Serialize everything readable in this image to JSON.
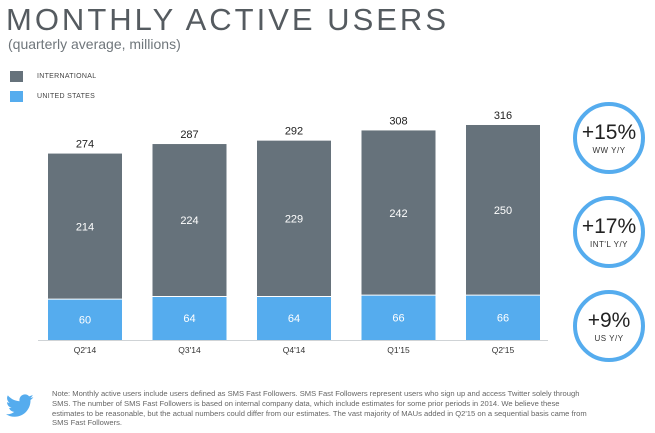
{
  "header": {
    "title": "MONTHLY ACTIVE USERS",
    "subtitle": "(quarterly average, millions)"
  },
  "legend": [
    {
      "label": "INTERNATIONAL",
      "color": "#66727b"
    },
    {
      "label": "UNITED STATES",
      "color": "#55acee"
    }
  ],
  "chart_data": {
    "type": "bar",
    "stacked": true,
    "title": "MONTHLY ACTIVE USERS",
    "subtitle": "(quarterly average, millions)",
    "categories": [
      "Q2'14",
      "Q3'14",
      "Q4'14",
      "Q1'15",
      "Q2'15"
    ],
    "series": [
      {
        "name": "UNITED STATES",
        "color": "#55acee",
        "values": [
          60,
          64,
          64,
          66,
          66
        ]
      },
      {
        "name": "INTERNATIONAL",
        "color": "#66727b",
        "values": [
          214,
          224,
          229,
          242,
          250
        ]
      }
    ],
    "totals": [
      274,
      287,
      292,
      308,
      316
    ],
    "ylim": [
      0,
      320
    ],
    "xlabel": "",
    "ylabel": ""
  },
  "badges": [
    {
      "value": "+15%",
      "label": "WW Y/Y"
    },
    {
      "value": "+17%",
      "label": "INT'L Y/Y"
    },
    {
      "value": "+9%",
      "label": "US Y/Y"
    }
  ],
  "footnote": "Note: Monthly active users include users defined as SMS Fast Followers. SMS Fast Followers represent users who sign up and access Twitter solely through SMS. The number of SMS Fast Followers is based on internal company data, which include estimates for some prior periods in 2014. We believe these estimates to be reasonable, but the actual numbers could differ from our estimates. The vast majority of MAUs added in Q2'15 on a sequential basis came from SMS Fast Followers.",
  "colors": {
    "accent": "#55acee",
    "international": "#66727b",
    "text": "#555b60"
  },
  "icons": {
    "logo": "twitter-bird-icon"
  }
}
